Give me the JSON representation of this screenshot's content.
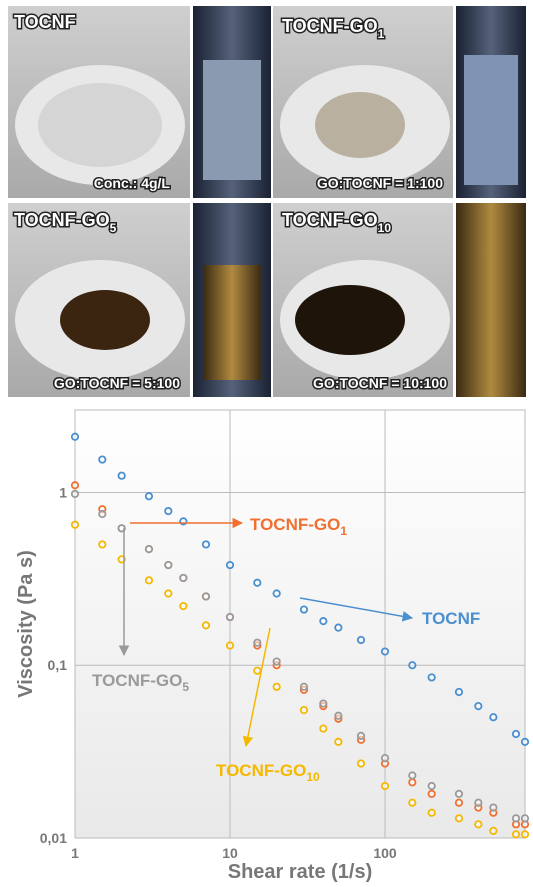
{
  "photos": [
    {
      "label": {
        "text": "TOCNF"
      },
      "caption": "Conc.: 4g/L"
    },
    {
      "label": {
        "text": "TOCNF-GO",
        "sub": "1"
      },
      "caption": "GO:TOCNF = 1:100"
    },
    {
      "label": {
        "text": "TOCNF-GO",
        "sub": "5"
      },
      "caption": "GO:TOCNF = 5:100"
    },
    {
      "label": {
        "text": "TOCNF-GO",
        "sub": "10"
      },
      "caption": "GO:TOCNF = 10:100"
    }
  ],
  "chart_data": {
    "type": "scatter",
    "xlabel": "Shear rate (1/s)",
    "ylabel": "Viscosity (Pa s)",
    "log_x": true,
    "log_y": true,
    "grid": true,
    "xlim": [
      1,
      800
    ],
    "ylim": [
      0.01,
      3
    ],
    "xticks": [
      1,
      10,
      100
    ],
    "yticks": [
      {
        "value": 0.01,
        "label": "0,01"
      },
      {
        "value": 0.1,
        "label": "0,1"
      },
      1
    ],
    "x": [
      1,
      1.5,
      2,
      3,
      4,
      5,
      7,
      10,
      15,
      20,
      30,
      40,
      50,
      70,
      100,
      150,
      200,
      300,
      400,
      500,
      700,
      800
    ],
    "series": [
      {
        "name": "TOCNF",
        "color": "#4a8fd0",
        "values": [
          2.1,
          1.55,
          1.25,
          0.95,
          0.78,
          0.68,
          0.5,
          0.38,
          0.3,
          0.26,
          0.21,
          0.18,
          0.165,
          0.14,
          0.12,
          0.1,
          0.085,
          0.07,
          0.058,
          0.05,
          0.04,
          0.036
        ]
      },
      {
        "name": "TOCNF-GO",
        "sub": "1",
        "color": "#f07030",
        "values": [
          1.1,
          0.8,
          0.62,
          0.47,
          0.38,
          0.32,
          0.25,
          0.19,
          0.13,
          0.1,
          0.072,
          0.058,
          0.049,
          0.037,
          0.027,
          0.021,
          0.018,
          0.016,
          0.015,
          0.014,
          0.012,
          0.012
        ]
      },
      {
        "name": "TOCNF-GO",
        "sub": "5",
        "color": "#9a9a9a",
        "values": [
          0.98,
          0.75,
          0.62,
          0.47,
          0.38,
          0.32,
          0.25,
          0.19,
          0.135,
          0.105,
          0.075,
          0.06,
          0.051,
          0.039,
          0.029,
          0.023,
          0.02,
          0.018,
          0.016,
          0.015,
          0.013,
          0.013
        ]
      },
      {
        "name": "TOCNF-GO",
        "sub": "10",
        "color": "#f5b800",
        "values": [
          0.65,
          0.5,
          0.41,
          0.31,
          0.26,
          0.22,
          0.17,
          0.13,
          0.093,
          0.075,
          0.055,
          0.043,
          0.036,
          0.027,
          0.02,
          0.016,
          0.014,
          0.013,
          0.012,
          0.011,
          0.0105,
          0.0105
        ]
      }
    ]
  }
}
